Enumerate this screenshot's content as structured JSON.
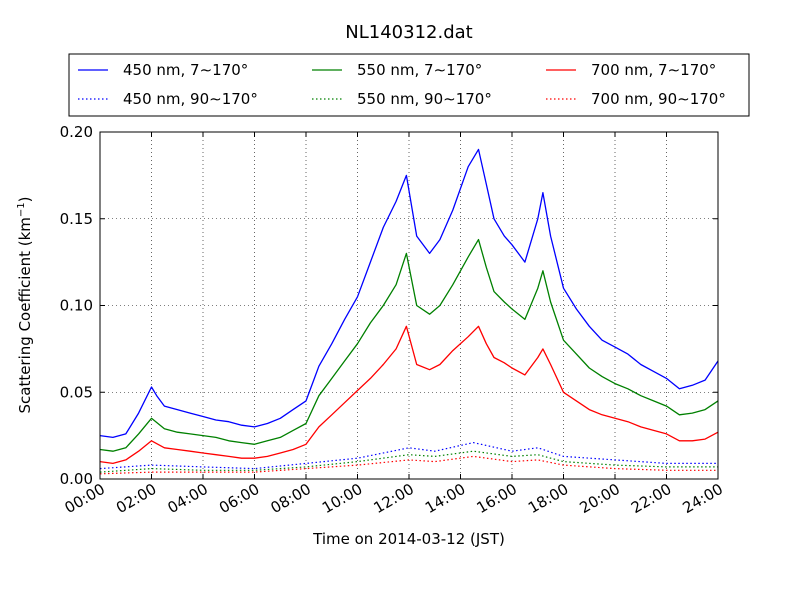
{
  "chart_data": {
    "type": "line",
    "title": "NL140312.dat",
    "xlabel": "Time on 2014-03-12 (JST)",
    "ylabel": "Scattering Coefficient (km",
    "ylabel_sup": "−1",
    "ylabel_end": ")",
    "xlim": [
      0,
      24
    ],
    "ylim": [
      0,
      0.2
    ],
    "grid": true,
    "legend_placement": "top-center",
    "x_ticks": [
      {
        "value": 0,
        "label": "00:00"
      },
      {
        "value": 2,
        "label": "02:00"
      },
      {
        "value": 4,
        "label": "04:00"
      },
      {
        "value": 6,
        "label": "06:00"
      },
      {
        "value": 8,
        "label": "08:00"
      },
      {
        "value": 10,
        "label": "10:00"
      },
      {
        "value": 12,
        "label": "12:00"
      },
      {
        "value": 14,
        "label": "14:00"
      },
      {
        "value": 16,
        "label": "16:00"
      },
      {
        "value": 18,
        "label": "18:00"
      },
      {
        "value": 20,
        "label": "20:00"
      },
      {
        "value": 22,
        "label": "22:00"
      },
      {
        "value": 24,
        "label": "24:00"
      }
    ],
    "y_ticks": [
      {
        "value": 0,
        "label": "0.00"
      },
      {
        "value": 0.05,
        "label": "0.05"
      },
      {
        "value": 0.1,
        "label": "0.10"
      },
      {
        "value": 0.15,
        "label": "0.15"
      },
      {
        "value": 0.2,
        "label": "0.20"
      }
    ],
    "series": [
      {
        "name": "450 nm, 7∼170°",
        "color": "#0000ff",
        "style": "solid",
        "points": [
          [
            0,
            0.025
          ],
          [
            0.5,
            0.024
          ],
          [
            1,
            0.026
          ],
          [
            1.5,
            0.038
          ],
          [
            2,
            0.053
          ],
          [
            2.2,
            0.048
          ],
          [
            2.5,
            0.042
          ],
          [
            3,
            0.04
          ],
          [
            3.5,
            0.038
          ],
          [
            4,
            0.036
          ],
          [
            4.5,
            0.034
          ],
          [
            5,
            0.033
          ],
          [
            5.5,
            0.031
          ],
          [
            6,
            0.03
          ],
          [
            6.5,
            0.032
          ],
          [
            7,
            0.035
          ],
          [
            7.5,
            0.04
          ],
          [
            8,
            0.045
          ],
          [
            8.5,
            0.065
          ],
          [
            9,
            0.078
          ],
          [
            9.5,
            0.092
          ],
          [
            10,
            0.105
          ],
          [
            10.5,
            0.125
          ],
          [
            11,
            0.145
          ],
          [
            11.5,
            0.16
          ],
          [
            11.9,
            0.175
          ],
          [
            12.3,
            0.14
          ],
          [
            12.8,
            0.13
          ],
          [
            13.2,
            0.138
          ],
          [
            13.7,
            0.155
          ],
          [
            14.3,
            0.18
          ],
          [
            14.7,
            0.19
          ],
          [
            15,
            0.17
          ],
          [
            15.3,
            0.15
          ],
          [
            15.7,
            0.14
          ],
          [
            16,
            0.135
          ],
          [
            16.5,
            0.125
          ],
          [
            17,
            0.15
          ],
          [
            17.2,
            0.165
          ],
          [
            17.5,
            0.14
          ],
          [
            18,
            0.11
          ],
          [
            18.5,
            0.098
          ],
          [
            19,
            0.088
          ],
          [
            19.5,
            0.08
          ],
          [
            20,
            0.076
          ],
          [
            20.5,
            0.072
          ],
          [
            21,
            0.066
          ],
          [
            21.5,
            0.062
          ],
          [
            22,
            0.058
          ],
          [
            22.5,
            0.052
          ],
          [
            23,
            0.054
          ],
          [
            23.5,
            0.057
          ],
          [
            24,
            0.068
          ]
        ]
      },
      {
        "name": "450 nm, 90∼170°",
        "color": "#0000ff",
        "style": "dotted",
        "points": [
          [
            0,
            0.006
          ],
          [
            2,
            0.008
          ],
          [
            4,
            0.007
          ],
          [
            6,
            0.006
          ],
          [
            8,
            0.009
          ],
          [
            10,
            0.012
          ],
          [
            12,
            0.018
          ],
          [
            13,
            0.016
          ],
          [
            14.5,
            0.021
          ],
          [
            16,
            0.016
          ],
          [
            17,
            0.018
          ],
          [
            18,
            0.013
          ],
          [
            20,
            0.011
          ],
          [
            22,
            0.009
          ],
          [
            24,
            0.009
          ]
        ]
      },
      {
        "name": "550 nm, 7∼170°",
        "color": "#008000",
        "style": "solid",
        "points": [
          [
            0,
            0.017
          ],
          [
            0.5,
            0.016
          ],
          [
            1,
            0.018
          ],
          [
            1.5,
            0.026
          ],
          [
            2,
            0.035
          ],
          [
            2.5,
            0.029
          ],
          [
            3,
            0.027
          ],
          [
            3.5,
            0.026
          ],
          [
            4,
            0.025
          ],
          [
            4.5,
            0.024
          ],
          [
            5,
            0.022
          ],
          [
            5.5,
            0.021
          ],
          [
            6,
            0.02
          ],
          [
            6.5,
            0.022
          ],
          [
            7,
            0.024
          ],
          [
            7.5,
            0.028
          ],
          [
            8,
            0.032
          ],
          [
            8.5,
            0.048
          ],
          [
            9,
            0.058
          ],
          [
            9.5,
            0.068
          ],
          [
            10,
            0.078
          ],
          [
            10.5,
            0.09
          ],
          [
            11,
            0.1
          ],
          [
            11.5,
            0.112
          ],
          [
            11.9,
            0.13
          ],
          [
            12.3,
            0.1
          ],
          [
            12.8,
            0.095
          ],
          [
            13.2,
            0.1
          ],
          [
            13.7,
            0.112
          ],
          [
            14.3,
            0.128
          ],
          [
            14.7,
            0.138
          ],
          [
            15,
            0.122
          ],
          [
            15.3,
            0.108
          ],
          [
            15.7,
            0.102
          ],
          [
            16,
            0.098
          ],
          [
            16.5,
            0.092
          ],
          [
            17,
            0.11
          ],
          [
            17.2,
            0.12
          ],
          [
            17.5,
            0.102
          ],
          [
            18,
            0.08
          ],
          [
            18.5,
            0.072
          ],
          [
            19,
            0.064
          ],
          [
            19.5,
            0.059
          ],
          [
            20,
            0.055
          ],
          [
            20.5,
            0.052
          ],
          [
            21,
            0.048
          ],
          [
            21.5,
            0.045
          ],
          [
            22,
            0.042
          ],
          [
            22.5,
            0.037
          ],
          [
            23,
            0.038
          ],
          [
            23.5,
            0.04
          ],
          [
            24,
            0.045
          ]
        ]
      },
      {
        "name": "550 nm, 90∼170°",
        "color": "#008000",
        "style": "dotted",
        "points": [
          [
            0,
            0.004
          ],
          [
            2,
            0.006
          ],
          [
            4,
            0.005
          ],
          [
            6,
            0.005
          ],
          [
            8,
            0.007
          ],
          [
            10,
            0.01
          ],
          [
            12,
            0.014
          ],
          [
            13,
            0.013
          ],
          [
            14.5,
            0.016
          ],
          [
            16,
            0.013
          ],
          [
            17,
            0.014
          ],
          [
            18,
            0.01
          ],
          [
            20,
            0.008
          ],
          [
            22,
            0.007
          ],
          [
            24,
            0.007
          ]
        ]
      },
      {
        "name": "700 nm, 7∼170°",
        "color": "#ff0000",
        "style": "solid",
        "points": [
          [
            0,
            0.01
          ],
          [
            0.5,
            0.009
          ],
          [
            1,
            0.011
          ],
          [
            1.5,
            0.016
          ],
          [
            2,
            0.022
          ],
          [
            2.5,
            0.018
          ],
          [
            3,
            0.017
          ],
          [
            3.5,
            0.016
          ],
          [
            4,
            0.015
          ],
          [
            4.5,
            0.014
          ],
          [
            5,
            0.013
          ],
          [
            5.5,
            0.012
          ],
          [
            6,
            0.012
          ],
          [
            6.5,
            0.013
          ],
          [
            7,
            0.015
          ],
          [
            7.5,
            0.017
          ],
          [
            8,
            0.02
          ],
          [
            8.5,
            0.03
          ],
          [
            9,
            0.037
          ],
          [
            9.5,
            0.044
          ],
          [
            10,
            0.051
          ],
          [
            10.5,
            0.058
          ],
          [
            11,
            0.066
          ],
          [
            11.5,
            0.075
          ],
          [
            11.9,
            0.088
          ],
          [
            12.3,
            0.066
          ],
          [
            12.8,
            0.063
          ],
          [
            13.2,
            0.066
          ],
          [
            13.7,
            0.074
          ],
          [
            14.3,
            0.082
          ],
          [
            14.7,
            0.088
          ],
          [
            15,
            0.078
          ],
          [
            15.3,
            0.07
          ],
          [
            15.7,
            0.067
          ],
          [
            16,
            0.064
          ],
          [
            16.5,
            0.06
          ],
          [
            17,
            0.07
          ],
          [
            17.2,
            0.075
          ],
          [
            17.5,
            0.066
          ],
          [
            18,
            0.05
          ],
          [
            18.5,
            0.045
          ],
          [
            19,
            0.04
          ],
          [
            19.5,
            0.037
          ],
          [
            20,
            0.035
          ],
          [
            20.5,
            0.033
          ],
          [
            21,
            0.03
          ],
          [
            21.5,
            0.028
          ],
          [
            22,
            0.026
          ],
          [
            22.5,
            0.022
          ],
          [
            23,
            0.022
          ],
          [
            23.5,
            0.023
          ],
          [
            24,
            0.027
          ]
        ]
      },
      {
        "name": "700 nm, 90∼170°",
        "color": "#ff0000",
        "style": "dotted",
        "points": [
          [
            0,
            0.003
          ],
          [
            2,
            0.004
          ],
          [
            4,
            0.004
          ],
          [
            6,
            0.004
          ],
          [
            8,
            0.006
          ],
          [
            10,
            0.008
          ],
          [
            12,
            0.011
          ],
          [
            13,
            0.01
          ],
          [
            14.5,
            0.013
          ],
          [
            16,
            0.01
          ],
          [
            17,
            0.011
          ],
          [
            18,
            0.008
          ],
          [
            20,
            0.006
          ],
          [
            22,
            0.005
          ],
          [
            24,
            0.005
          ]
        ]
      }
    ]
  }
}
